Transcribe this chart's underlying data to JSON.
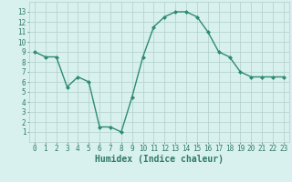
{
  "x": [
    0,
    1,
    2,
    3,
    4,
    5,
    6,
    7,
    8,
    9,
    10,
    11,
    12,
    13,
    14,
    15,
    16,
    17,
    18,
    19,
    20,
    21,
    22,
    23
  ],
  "y": [
    9.0,
    8.5,
    8.5,
    5.5,
    6.5,
    6.0,
    1.5,
    1.5,
    1.0,
    4.5,
    8.5,
    11.5,
    12.5,
    13.0,
    13.0,
    12.5,
    11.0,
    9.0,
    8.5,
    7.0,
    6.5,
    6.5,
    6.5,
    6.5
  ],
  "xlabel": "Humidex (Indice chaleur)",
  "ylim": [
    0,
    14
  ],
  "xlim": [
    -0.5,
    23.5
  ],
  "yticks": [
    1,
    2,
    3,
    4,
    5,
    6,
    7,
    8,
    9,
    10,
    11,
    12,
    13
  ],
  "xticks": [
    0,
    1,
    2,
    3,
    4,
    5,
    6,
    7,
    8,
    9,
    10,
    11,
    12,
    13,
    14,
    15,
    16,
    17,
    18,
    19,
    20,
    21,
    22,
    23
  ],
  "line_color": "#2e8b74",
  "marker": "D",
  "marker_size": 2.0,
  "bg_color": "#d8f0ee",
  "grid_color": "#b0d0cc",
  "label_color": "#2e7a68",
  "tick_color": "#2e7a68",
  "xlabel_fontsize": 7.0,
  "tick_fontsize": 5.5,
  "line_width": 1.0
}
